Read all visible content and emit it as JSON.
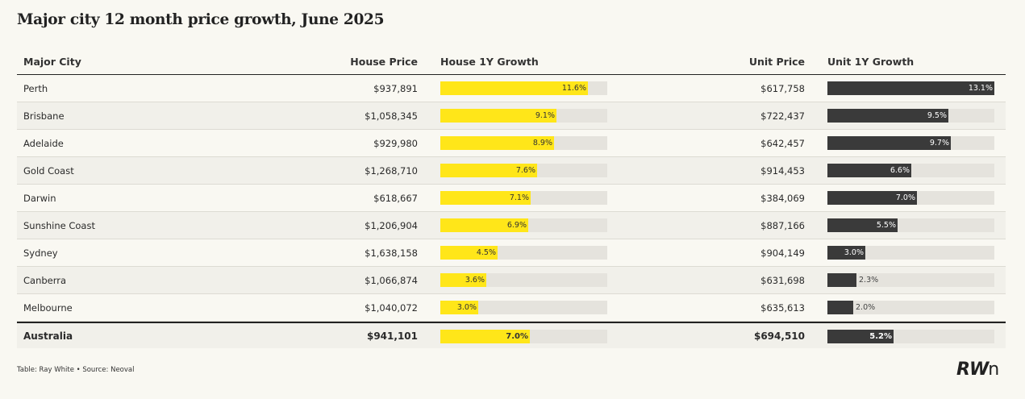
{
  "title": "Major city 12 month price growth, June 2025",
  "headers": {
    "city": "Major City",
    "house_price": "House Price",
    "house_growth": "House 1Y Growth",
    "unit_price": "Unit Price",
    "unit_growth": "Unit 1Y Growth"
  },
  "chart_data": {
    "type": "table",
    "growth_axis_max_pct": 13.1,
    "colors": {
      "house_bar": "#ffe619",
      "unit_bar": "#3a3a3a",
      "track": "#e5e3dd"
    },
    "rows": [
      {
        "city": "Perth",
        "house_price": "$937,891",
        "house_growth": 11.6,
        "house_growth_label": "11.6%",
        "unit_price": "$617,758",
        "unit_growth": 13.1,
        "unit_growth_label": "13.1%"
      },
      {
        "city": "Brisbane",
        "house_price": "$1,058,345",
        "house_growth": 9.1,
        "house_growth_label": "9.1%",
        "unit_price": "$722,437",
        "unit_growth": 9.5,
        "unit_growth_label": "9.5%"
      },
      {
        "city": "Adelaide",
        "house_price": "$929,980",
        "house_growth": 8.9,
        "house_growth_label": "8.9%",
        "unit_price": "$642,457",
        "unit_growth": 9.7,
        "unit_growth_label": "9.7%"
      },
      {
        "city": "Gold Coast",
        "house_price": "$1,268,710",
        "house_growth": 7.6,
        "house_growth_label": "7.6%",
        "unit_price": "$914,453",
        "unit_growth": 6.6,
        "unit_growth_label": "6.6%"
      },
      {
        "city": "Darwin",
        "house_price": "$618,667",
        "house_growth": 7.1,
        "house_growth_label": "7.1%",
        "unit_price": "$384,069",
        "unit_growth": 7.0,
        "unit_growth_label": "7.0%"
      },
      {
        "city": "Sunshine Coast",
        "house_price": "$1,206,904",
        "house_growth": 6.9,
        "house_growth_label": "6.9%",
        "unit_price": "$887,166",
        "unit_growth": 5.5,
        "unit_growth_label": "5.5%"
      },
      {
        "city": "Sydney",
        "house_price": "$1,638,158",
        "house_growth": 4.5,
        "house_growth_label": "4.5%",
        "unit_price": "$904,149",
        "unit_growth": 3.0,
        "unit_growth_label": "3.0%"
      },
      {
        "city": "Canberra",
        "house_price": "$1,066,874",
        "house_growth": 3.6,
        "house_growth_label": "3.6%",
        "unit_price": "$631,698",
        "unit_growth": 2.3,
        "unit_growth_label": "2.3%"
      },
      {
        "city": "Melbourne",
        "house_price": "$1,040,072",
        "house_growth": 3.0,
        "house_growth_label": "3.0%",
        "unit_price": "$635,613",
        "unit_growth": 2.0,
        "unit_growth_label": "2.0%"
      }
    ],
    "total": {
      "city": "Australia",
      "house_price": "$941,101",
      "house_growth": 7.0,
      "house_growth_label": "7.0%",
      "unit_price": "$694,510",
      "unit_growth": 5.2,
      "unit_growth_label": "5.2%"
    }
  },
  "footer": "Table: Ray White • Source: Neoval",
  "logo": {
    "letters": "RW",
    "suffix": "n"
  }
}
